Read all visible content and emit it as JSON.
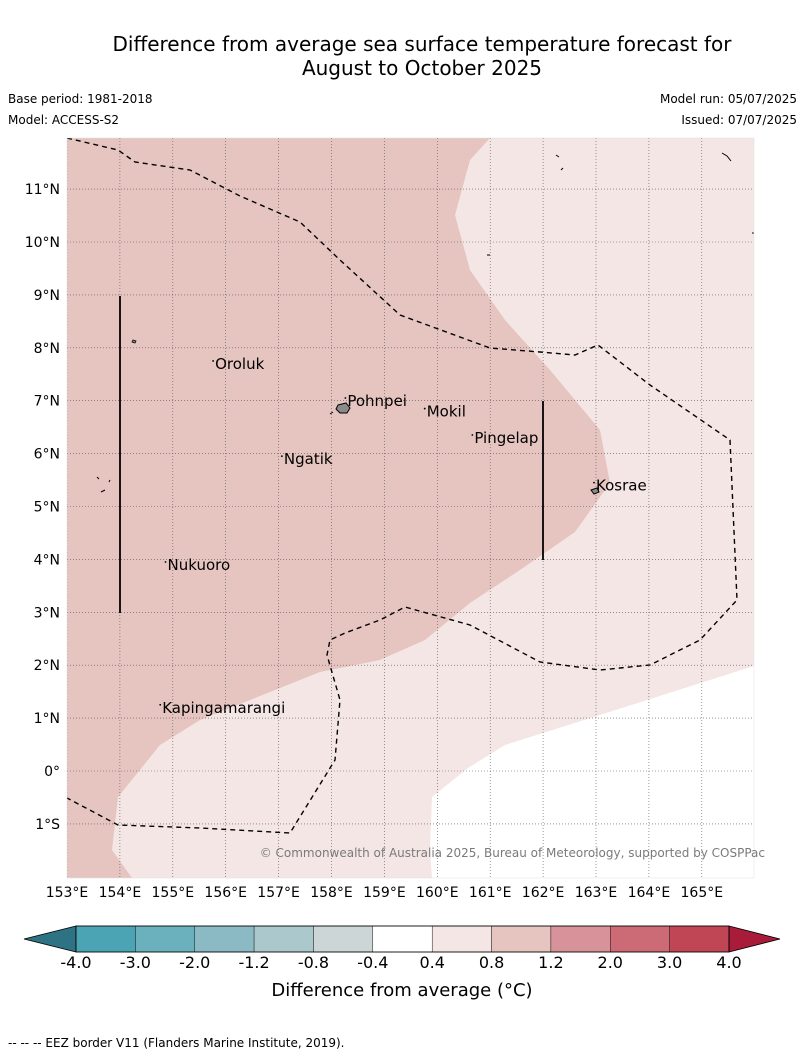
{
  "title_line1": "Difference from average sea surface temperature forecast for",
  "title_line2": "August to October 2025",
  "base_period": "Base period: 1981-2018",
  "model": "Model: ACCESS-S2",
  "model_run": "Model run: 05/07/2025",
  "issued": "Issued: 07/07/2025",
  "lon_labels": [
    "153°E",
    "154°E",
    "155°E",
    "156°E",
    "157°E",
    "158°E",
    "159°E",
    "160°E",
    "161°E",
    "162°E",
    "163°E",
    "164°E",
    "165°E"
  ],
  "lat_labels": [
    "11°N",
    "10°N",
    "9°N",
    "8°N",
    "7°N",
    "6°N",
    "5°N",
    "4°N",
    "3°N",
    "2°N",
    "1°N",
    "0°",
    "1°S"
  ],
  "places": [
    {
      "name": "Oroluk",
      "lon": 155.8,
      "lat": 7.6
    },
    {
      "name": "Pohnpei",
      "lon": 158.3,
      "lat": 6.9
    },
    {
      "name": "Mokil",
      "lon": 159.8,
      "lat": 6.7
    },
    {
      "name": "Pingelap",
      "lon": 160.7,
      "lat": 6.2
    },
    {
      "name": "Kosrae",
      "lon": 163.0,
      "lat": 5.3
    },
    {
      "name": "Ngatik",
      "lon": 157.1,
      "lat": 5.8
    },
    {
      "name": "Nukuoro",
      "lon": 154.9,
      "lat": 3.8
    },
    {
      "name": "Kapingamarangi",
      "lon": 154.8,
      "lat": 1.1
    }
  ],
  "copyright": "© Commonwealth of Australia 2025, Bureau of Meteorology, supported by COSPPac",
  "colorbar": {
    "labels": [
      "-4.0",
      "-3.0",
      "-2.0",
      "-1.2",
      "-0.8",
      "-0.4",
      "0.4",
      "0.8",
      "1.2",
      "2.0",
      "3.0",
      "4.0"
    ],
    "colors": [
      "#2e7383",
      "#4aa4b3",
      "#6bb0bd",
      "#8cbac4",
      "#abc9cd",
      "#cdd6d6",
      "#ffffff",
      "#f4e6e5",
      "#e6c5c0",
      "#d8929a",
      "#cc6b76",
      "#c04656",
      "#a81c3a"
    ],
    "title": "Difference from average (°C)"
  },
  "fill_colors": {
    "band_0_4_0_8": "#f4e6e5",
    "band_0_8_1_2": "#e6c5c0"
  },
  "footnote": "--  --  -- EEZ border V11 (Flanders Marine Institute, 2019)."
}
